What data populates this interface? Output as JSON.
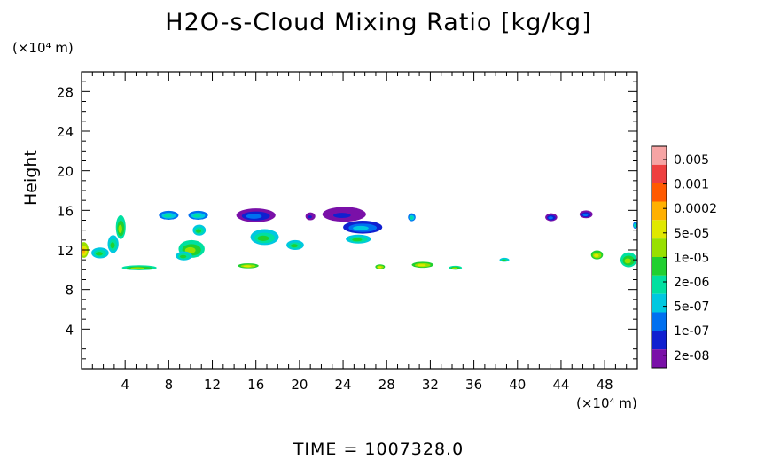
{
  "chart_data": {
    "type": "heatmap",
    "title": "H2O-s-Cloud Mixing Ratio [kg/kg]",
    "ylabel": "Height",
    "x_unit": "(×10⁴ m)",
    "y_unit": "(×10⁴ m)",
    "time_label": "TIME  =  1007328.0",
    "xlim": [
      0,
      51
    ],
    "ylim": [
      0,
      30
    ],
    "x_ticks": [
      4,
      8,
      12,
      16,
      20,
      24,
      28,
      32,
      36,
      40,
      44,
      48
    ],
    "y_ticks": [
      4,
      8,
      12,
      16,
      20,
      24,
      28
    ],
    "colorbar": {
      "labels": [
        "0.005",
        "0.001",
        "0.0002",
        "5e-05",
        "1e-05",
        "2e-06",
        "5e-07",
        "1e-07",
        "2e-08"
      ],
      "colors": [
        "#f6a4a4",
        "#ee4040",
        "#ff5a00",
        "#ffb000",
        "#e0e800",
        "#98e000",
        "#20d030",
        "#00e0a0",
        "#00c8e0",
        "#0070f0",
        "#1020d0",
        "#7a10a8"
      ]
    },
    "cloud_regions": [
      {
        "x": 3.6,
        "y": 14.3,
        "w": 0.9,
        "h": 2.4,
        "level": 5
      },
      {
        "x": 2.9,
        "y": 12.6,
        "w": 1.0,
        "h": 1.8,
        "level": 6
      },
      {
        "x": 1.7,
        "y": 11.7,
        "w": 1.6,
        "h": 1.1,
        "level": 6
      },
      {
        "x": 0.2,
        "y": 12.0,
        "w": 0.9,
        "h": 1.6,
        "level": 3
      },
      {
        "x": 5.3,
        "y": 10.2,
        "w": 3.2,
        "h": 0.5,
        "level": 5
      },
      {
        "x": 8.0,
        "y": 15.5,
        "w": 1.8,
        "h": 0.9,
        "level": 7
      },
      {
        "x": 10.7,
        "y": 15.5,
        "w": 1.8,
        "h": 0.9,
        "level": 7
      },
      {
        "x": 10.8,
        "y": 14.0,
        "w": 1.2,
        "h": 1.1,
        "level": 6
      },
      {
        "x": 10.1,
        "y": 12.1,
        "w": 2.4,
        "h": 1.8,
        "level": 5
      },
      {
        "x": 9.4,
        "y": 11.4,
        "w": 1.5,
        "h": 0.9,
        "level": 6
      },
      {
        "x": 15.3,
        "y": 10.4,
        "w": 1.9,
        "h": 0.5,
        "level": 4
      },
      {
        "x": 16.0,
        "y": 15.5,
        "w": 3.6,
        "h": 1.4,
        "level": 9
      },
      {
        "x": 16.8,
        "y": 13.3,
        "w": 2.6,
        "h": 1.6,
        "level": 6
      },
      {
        "x": 19.6,
        "y": 12.5,
        "w": 1.6,
        "h": 1.0,
        "level": 6
      },
      {
        "x": 21.0,
        "y": 15.4,
        "w": 0.9,
        "h": 0.8,
        "level": 10
      },
      {
        "x": 24.1,
        "y": 15.6,
        "w": 4.0,
        "h": 1.5,
        "level": 10
      },
      {
        "x": 25.8,
        "y": 14.3,
        "w": 3.6,
        "h": 1.3,
        "level": 8
      },
      {
        "x": 25.4,
        "y": 13.1,
        "w": 2.3,
        "h": 0.9,
        "level": 6
      },
      {
        "x": 30.3,
        "y": 15.3,
        "w": 0.7,
        "h": 0.8,
        "level": 7
      },
      {
        "x": 27.4,
        "y": 10.3,
        "w": 0.9,
        "h": 0.5,
        "level": 4
      },
      {
        "x": 31.3,
        "y": 10.5,
        "w": 2.0,
        "h": 0.6,
        "level": 4
      },
      {
        "x": 34.3,
        "y": 10.2,
        "w": 1.2,
        "h": 0.4,
        "level": 5
      },
      {
        "x": 38.8,
        "y": 11.0,
        "w": 0.9,
        "h": 0.4,
        "level": 6
      },
      {
        "x": 43.1,
        "y": 15.3,
        "w": 1.1,
        "h": 0.8,
        "level": 9
      },
      {
        "x": 46.3,
        "y": 15.6,
        "w": 1.2,
        "h": 0.8,
        "level": 9
      },
      {
        "x": 47.3,
        "y": 11.5,
        "w": 1.1,
        "h": 0.9,
        "level": 4
      },
      {
        "x": 50.2,
        "y": 11.0,
        "w": 1.5,
        "h": 1.5,
        "level": 5
      },
      {
        "x": 50.8,
        "y": 14.5,
        "w": 0.4,
        "h": 0.7,
        "level": 7
      }
    ]
  }
}
